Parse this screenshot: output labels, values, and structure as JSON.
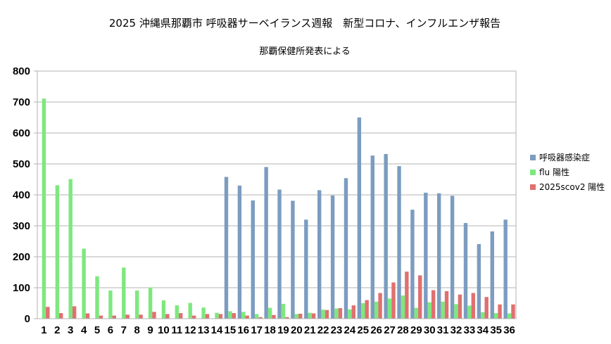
{
  "chart_data": {
    "type": "bar",
    "title": "2025  沖縄県那覇市 呼吸器サーベイランス週報　新型コロナ、インフルエンザ報告",
    "subtitle": "那覇保健所発表による",
    "xlabel": "",
    "ylabel": "",
    "ylim": [
      0,
      800
    ],
    "yticks": [
      0,
      100,
      200,
      300,
      400,
      500,
      600,
      700,
      800
    ],
    "grid": true,
    "legend_position": "right",
    "categories": [
      "1",
      "2",
      "3",
      "4",
      "5",
      "6",
      "7",
      "8",
      "9",
      "10",
      "11",
      "12",
      "13",
      "14",
      "15",
      "16",
      "17",
      "18",
      "19",
      "20",
      "21",
      "22",
      "23",
      "24",
      "25",
      "26",
      "27",
      "28",
      "29",
      "30",
      "31",
      "32",
      "33",
      "34",
      "35",
      "36"
    ],
    "series": [
      {
        "name": "呼吸器感染症",
        "color": "#7c9cc0",
        "values": [
          null,
          null,
          null,
          null,
          null,
          null,
          null,
          null,
          null,
          null,
          null,
          null,
          null,
          null,
          458,
          430,
          382,
          490,
          417,
          381,
          320,
          415,
          398,
          454,
          650,
          527,
          532,
          493,
          352,
          407,
          405,
          397,
          309,
          241,
          282,
          320
        ]
      },
      {
        "name": "flu 陽性",
        "color": "#7ee87e",
        "values": [
          711,
          431,
          451,
          226,
          137,
          91,
          165,
          91,
          101,
          59,
          43,
          51,
          36,
          19,
          24,
          22,
          15,
          35,
          48,
          15,
          19,
          29,
          33,
          30,
          50,
          55,
          65,
          75,
          35,
          53,
          55,
          47,
          42,
          21,
          18,
          17
        ]
      },
      {
        "name": "2025scov2 陽性",
        "color": "#e07070",
        "values": [
          38,
          18,
          40,
          17,
          10,
          10,
          13,
          13,
          22,
          15,
          18,
          10,
          15,
          15,
          18,
          10,
          5,
          12,
          5,
          16,
          17,
          28,
          34,
          43,
          60,
          83,
          117,
          152,
          140,
          92,
          89,
          78,
          83,
          70,
          46,
          46
        ]
      }
    ]
  }
}
